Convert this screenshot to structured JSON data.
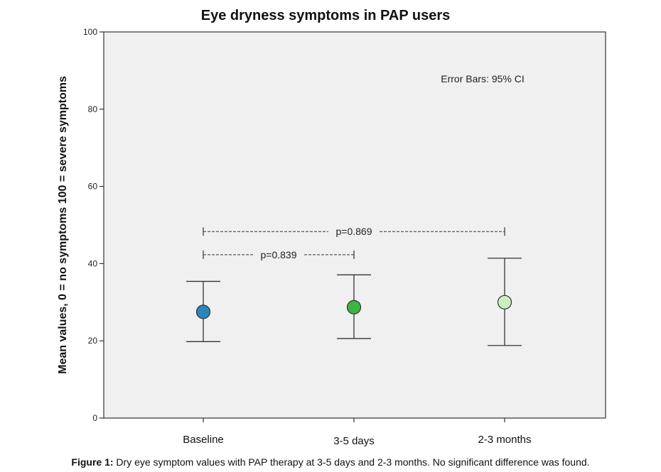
{
  "chart_data": {
    "type": "scatter",
    "title": "Eye dryness symptoms in PAP users",
    "xlabel": "",
    "ylabel": "Mean values, 0 = no symptoms 100 = severe symptoms",
    "categories": [
      "Baseline",
      "3-5 days",
      "2-3 months"
    ],
    "means": [
      27.5,
      28.7,
      30.0
    ],
    "ci_low": [
      19.8,
      20.6,
      18.8
    ],
    "ci_high": [
      35.4,
      37.1,
      41.4
    ],
    "point_colors": [
      "#2a86b8",
      "#3cb544",
      "#c9efc1"
    ],
    "ylim": [
      0,
      100
    ],
    "yticks": [
      "0",
      "20",
      "40",
      "60",
      "80",
      "100"
    ],
    "grid": false,
    "background_color": "#f0f0f0",
    "note": "Error Bars: 95% CI",
    "comparisons": [
      {
        "from": 0,
        "to": 1,
        "label": "p=0.839",
        "level": 42.3
      },
      {
        "from": 0,
        "to": 2,
        "label": "p=0.869",
        "level": 48.3
      }
    ]
  },
  "caption": {
    "label": "Figure 1:",
    "text": " Dry eye symptom values with PAP therapy at 3-5 days and 2-3 months. No significant difference was found."
  }
}
